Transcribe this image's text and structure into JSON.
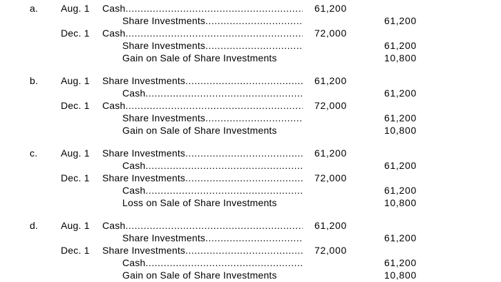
{
  "document": {
    "kind": "journal-entry-answer-options",
    "background": "#ffffff",
    "text_color": "#000000"
  },
  "options": [
    {
      "label": "a.",
      "rows": [
        {
          "date": "Aug. 1",
          "account": "Cash",
          "indent": 0,
          "dots": true,
          "debit": "61,200",
          "credit": ""
        },
        {
          "date": "",
          "account": "Share Investments",
          "indent": 1,
          "dots": true,
          "debit": "",
          "credit": "61,200"
        },
        {
          "date": "Dec. 1",
          "account": "Cash",
          "indent": 0,
          "dots": true,
          "debit": "72,000",
          "credit": ""
        },
        {
          "date": "",
          "account": "Share Investments",
          "indent": 1,
          "dots": true,
          "debit": "",
          "credit": "61,200"
        },
        {
          "date": "",
          "account": "Gain on Sale of Share Investments",
          "indent": 1,
          "dots": false,
          "debit": "",
          "credit": "10,800"
        }
      ]
    },
    {
      "label": "b.",
      "rows": [
        {
          "date": "Aug. 1",
          "account": "Share Investments",
          "indent": 0,
          "dots": true,
          "debit": "61,200",
          "credit": ""
        },
        {
          "date": "",
          "account": "Cash",
          "indent": 1,
          "dots": true,
          "debit": "",
          "credit": "61,200"
        },
        {
          "date": "Dec. 1",
          "account": "Cash",
          "indent": 0,
          "dots": true,
          "debit": "72,000",
          "credit": ""
        },
        {
          "date": "",
          "account": "Share Investments",
          "indent": 1,
          "dots": true,
          "debit": "",
          "credit": "61,200"
        },
        {
          "date": "",
          "account": "Gain on Sale of Share Investments",
          "indent": 1,
          "dots": false,
          "debit": "",
          "credit": "10,800"
        }
      ]
    },
    {
      "label": "c.",
      "rows": [
        {
          "date": "Aug. 1",
          "account": "Share Investments",
          "indent": 0,
          "dots": true,
          "debit": "61,200",
          "credit": ""
        },
        {
          "date": "",
          "account": "Cash",
          "indent": 1,
          "dots": true,
          "debit": "",
          "credit": "61,200"
        },
        {
          "date": "Dec. 1",
          "account": "Share Investments",
          "indent": 0,
          "dots": true,
          "debit": "72,000",
          "credit": ""
        },
        {
          "date": "",
          "account": "Cash",
          "indent": 1,
          "dots": true,
          "debit": "",
          "credit": "61,200"
        },
        {
          "date": "",
          "account": "Loss on Sale of Share Investments",
          "indent": 1,
          "dots": false,
          "debit": "",
          "credit": "10,800"
        }
      ]
    },
    {
      "label": "d.",
      "rows": [
        {
          "date": "Aug. 1",
          "account": "Cash",
          "indent": 0,
          "dots": true,
          "debit": "61,200",
          "credit": ""
        },
        {
          "date": "",
          "account": "Share Investments",
          "indent": 1,
          "dots": true,
          "debit": "",
          "credit": "61,200"
        },
        {
          "date": "Dec. 1",
          "account": "Share Investments",
          "indent": 0,
          "dots": true,
          "debit": "72,000",
          "credit": ""
        },
        {
          "date": "",
          "account": "Cash",
          "indent": 1,
          "dots": true,
          "debit": "",
          "credit": "61,200"
        },
        {
          "date": "",
          "account": "Gain on Sale of Share Investments",
          "indent": 1,
          "dots": false,
          "debit": "",
          "credit": "10,800"
        }
      ]
    }
  ]
}
